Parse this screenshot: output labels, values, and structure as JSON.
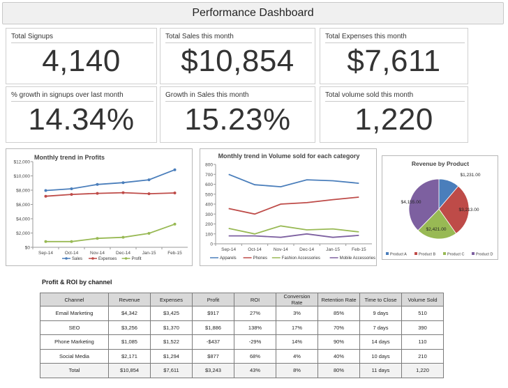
{
  "dashboard_title": "Performance Dashboard",
  "kpis": [
    {
      "label": "Total Signups",
      "value": "4,140"
    },
    {
      "label": "Total Sales this month",
      "value": "$10,854"
    },
    {
      "label": "Total Expenses this month",
      "value": "$7,611"
    },
    {
      "label": "% growth in signups over last month",
      "value": "14.34%"
    },
    {
      "label": "Growth in Sales this month",
      "value": "15.23%"
    },
    {
      "label": "Total volume sold this month",
      "value": "1,220"
    }
  ],
  "chart_data": [
    {
      "type": "line",
      "title": "Monthly trend in Profits",
      "categories": [
        "Sep-14",
        "Oct-14",
        "Nov-14",
        "Dec-14",
        "Jan-15",
        "Feb-15"
      ],
      "ylim": [
        0,
        12000
      ],
      "yticks": [
        "$0",
        "$2,000",
        "$4,000",
        "$6,000",
        "$8,000",
        "$10,000",
        "$12,000"
      ],
      "grid": false,
      "legend_position": "bottom",
      "series": [
        {
          "name": "Sales",
          "color": "#4a7ebb",
          "values": [
            7950,
            8200,
            8800,
            9050,
            9450,
            10854
          ]
        },
        {
          "name": "Expenses",
          "color": "#be4b48",
          "values": [
            7150,
            7400,
            7550,
            7650,
            7500,
            7611
          ]
        },
        {
          "name": "Profit",
          "color": "#98b954",
          "values": [
            800,
            800,
            1250,
            1400,
            1950,
            3243
          ]
        }
      ]
    },
    {
      "type": "line",
      "title": "Monthly trend in Volume sold for each category",
      "categories": [
        "Sep-14",
        "Oct-14",
        "Nov-14",
        "Dec-14",
        "Jan-15",
        "Feb-15"
      ],
      "ylim": [
        0,
        800
      ],
      "yticks": [
        "0",
        "100",
        "200",
        "300",
        "400",
        "500",
        "600",
        "700",
        "800"
      ],
      "grid": false,
      "legend_position": "bottom",
      "series": [
        {
          "name": "Apparels",
          "color": "#4a7ebb",
          "values": [
            700,
            595,
            575,
            645,
            635,
            610
          ]
        },
        {
          "name": "Phones",
          "color": "#be4b48",
          "values": [
            355,
            300,
            400,
            415,
            445,
            470
          ]
        },
        {
          "name": "Fashion Accessories",
          "color": "#98b954",
          "values": [
            155,
            100,
            180,
            140,
            150,
            120
          ]
        },
        {
          "name": "Mobile Accessories",
          "color": "#7d60a0",
          "values": [
            80,
            80,
            65,
            100,
            65,
            85
          ]
        }
      ]
    },
    {
      "type": "pie",
      "title": "Revenue by Product",
      "legend_position": "bottom",
      "slices": [
        {
          "name": "Product A",
          "color": "#4a7ebb",
          "value": 1231,
          "label": "$1,231.00"
        },
        {
          "name": "Product B",
          "color": "#be4b48",
          "value": 3213,
          "label": "$3,213.00"
        },
        {
          "name": "Product C",
          "color": "#98b954",
          "value": 2421,
          "label": "$2,421.00"
        },
        {
          "name": "Product D",
          "color": "#7d60a0",
          "value": 4155,
          "label": "$4,155.00"
        }
      ]
    }
  ],
  "roi_table": {
    "title": "Profit & ROI by channel",
    "headers": [
      "Channel",
      "Revenue",
      "Expenses",
      "Profit",
      "ROI",
      "Conversion Rate",
      "Retention Rate",
      "Time to Close",
      "Volume Sold"
    ],
    "rows": [
      [
        "Email Marketing",
        "$4,342",
        "$3,425",
        "$917",
        "27%",
        "3%",
        "85%",
        "9 days",
        "510"
      ],
      [
        "SEO",
        "$3,256",
        "$1,370",
        "$1,886",
        "138%",
        "17%",
        "70%",
        "7 days",
        "390"
      ],
      [
        "Phone Marketing",
        "$1,085",
        "$1,522",
        "-$437",
        "-29%",
        "14%",
        "90%",
        "14 days",
        "110"
      ],
      [
        "Social Media",
        "$2,171",
        "$1,294",
        "$877",
        "68%",
        "4%",
        "40%",
        "10 days",
        "210"
      ]
    ],
    "total": [
      "Total",
      "$10,854",
      "$7,611",
      "$3,243",
      "43%",
      "8%",
      "80%",
      "11 days",
      "1,220"
    ]
  }
}
